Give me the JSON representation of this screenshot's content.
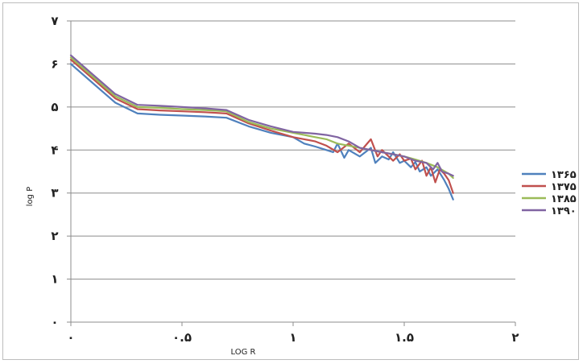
{
  "chart_data": {
    "type": "line",
    "title": "",
    "xlabel": "LOG R",
    "ylabel": "log P",
    "xlim": [
      0,
      2
    ],
    "ylim": [
      0,
      7
    ],
    "x_ticks": [
      {
        "value": 0,
        "label": "٠"
      },
      {
        "value": 0.5,
        "label": "٠.۵"
      },
      {
        "value": 1,
        "label": "۱"
      },
      {
        "value": 1.5,
        "label": "۱.۵"
      },
      {
        "value": 2,
        "label": "۲"
      }
    ],
    "y_ticks": [
      {
        "value": 0,
        "label": "٠"
      },
      {
        "value": 1,
        "label": "۱"
      },
      {
        "value": 2,
        "label": "۲"
      },
      {
        "value": 3,
        "label": "۳"
      },
      {
        "value": 4,
        "label": "۴"
      },
      {
        "value": 5,
        "label": "۵"
      },
      {
        "value": 6,
        "label": "۶"
      },
      {
        "value": 7,
        "label": "۷"
      }
    ],
    "grid": "horizontal",
    "legend_position": "right",
    "series": [
      {
        "name": "۱۳۶۵",
        "color": "#4f81bd",
        "points": [
          [
            0,
            6.0
          ],
          [
            0.1,
            5.55
          ],
          [
            0.2,
            5.1
          ],
          [
            0.3,
            4.85
          ],
          [
            0.4,
            4.82
          ],
          [
            0.5,
            4.8
          ],
          [
            0.6,
            4.78
          ],
          [
            0.7,
            4.75
          ],
          [
            0.8,
            4.55
          ],
          [
            0.9,
            4.4
          ],
          [
            1.0,
            4.3
          ],
          [
            1.05,
            4.15
          ],
          [
            1.1,
            4.08
          ],
          [
            1.15,
            4.0
          ],
          [
            1.18,
            3.95
          ],
          [
            1.2,
            4.15
          ],
          [
            1.23,
            3.82
          ],
          [
            1.25,
            4.0
          ],
          [
            1.3,
            3.85
          ],
          [
            1.35,
            4.05
          ],
          [
            1.37,
            3.7
          ],
          [
            1.4,
            3.85
          ],
          [
            1.43,
            3.78
          ],
          [
            1.45,
            3.95
          ],
          [
            1.48,
            3.7
          ],
          [
            1.5,
            3.75
          ],
          [
            1.53,
            3.6
          ],
          [
            1.55,
            3.72
          ],
          [
            1.57,
            3.5
          ],
          [
            1.6,
            3.6
          ],
          [
            1.62,
            3.4
          ],
          [
            1.65,
            3.55
          ],
          [
            1.68,
            3.3
          ],
          [
            1.7,
            3.1
          ],
          [
            1.72,
            2.85
          ]
        ]
      },
      {
        "name": "۱۳۷۵",
        "color": "#c0504d",
        "points": [
          [
            0,
            6.1
          ],
          [
            0.1,
            5.65
          ],
          [
            0.2,
            5.2
          ],
          [
            0.3,
            4.95
          ],
          [
            0.4,
            4.92
          ],
          [
            0.5,
            4.9
          ],
          [
            0.6,
            4.88
          ],
          [
            0.7,
            4.85
          ],
          [
            0.8,
            4.62
          ],
          [
            0.9,
            4.45
          ],
          [
            1.0,
            4.3
          ],
          [
            1.05,
            4.25
          ],
          [
            1.1,
            4.2
          ],
          [
            1.15,
            4.1
          ],
          [
            1.2,
            3.95
          ],
          [
            1.25,
            4.15
          ],
          [
            1.3,
            3.95
          ],
          [
            1.35,
            4.25
          ],
          [
            1.38,
            3.85
          ],
          [
            1.4,
            4.0
          ],
          [
            1.45,
            3.75
          ],
          [
            1.48,
            3.9
          ],
          [
            1.5,
            3.75
          ],
          [
            1.53,
            3.8
          ],
          [
            1.55,
            3.55
          ],
          [
            1.58,
            3.75
          ],
          [
            1.6,
            3.4
          ],
          [
            1.62,
            3.6
          ],
          [
            1.64,
            3.25
          ],
          [
            1.66,
            3.55
          ],
          [
            1.68,
            3.45
          ],
          [
            1.7,
            3.3
          ],
          [
            1.72,
            3.0
          ]
        ]
      },
      {
        "name": "۱۳۸۵",
        "color": "#9bbb59",
        "points": [
          [
            0,
            6.15
          ],
          [
            0.1,
            5.7
          ],
          [
            0.2,
            5.25
          ],
          [
            0.3,
            5.0
          ],
          [
            0.4,
            4.98
          ],
          [
            0.5,
            4.95
          ],
          [
            0.6,
            4.93
          ],
          [
            0.7,
            4.9
          ],
          [
            0.8,
            4.65
          ],
          [
            0.9,
            4.5
          ],
          [
            1.0,
            4.4
          ],
          [
            1.05,
            4.35
          ],
          [
            1.1,
            4.3
          ],
          [
            1.15,
            4.25
          ],
          [
            1.2,
            4.15
          ],
          [
            1.25,
            4.1
          ],
          [
            1.3,
            4.05
          ],
          [
            1.35,
            4.0
          ],
          [
            1.4,
            3.95
          ],
          [
            1.45,
            3.9
          ],
          [
            1.5,
            3.85
          ],
          [
            1.55,
            3.78
          ],
          [
            1.6,
            3.7
          ],
          [
            1.65,
            3.6
          ],
          [
            1.7,
            3.45
          ],
          [
            1.72,
            3.35
          ]
        ]
      },
      {
        "name": "۱۳۹۰",
        "color": "#8064a2",
        "points": [
          [
            0,
            6.2
          ],
          [
            0.1,
            5.75
          ],
          [
            0.2,
            5.3
          ],
          [
            0.3,
            5.05
          ],
          [
            0.4,
            5.03
          ],
          [
            0.5,
            5.0
          ],
          [
            0.6,
            4.97
          ],
          [
            0.7,
            4.93
          ],
          [
            0.8,
            4.7
          ],
          [
            0.9,
            4.55
          ],
          [
            1.0,
            4.42
          ],
          [
            1.05,
            4.4
          ],
          [
            1.1,
            4.38
          ],
          [
            1.15,
            4.35
          ],
          [
            1.2,
            4.3
          ],
          [
            1.25,
            4.2
          ],
          [
            1.3,
            4.05
          ],
          [
            1.35,
            4.0
          ],
          [
            1.4,
            3.95
          ],
          [
            1.45,
            3.9
          ],
          [
            1.5,
            3.85
          ],
          [
            1.55,
            3.75
          ],
          [
            1.6,
            3.7
          ],
          [
            1.63,
            3.55
          ],
          [
            1.65,
            3.7
          ],
          [
            1.67,
            3.5
          ],
          [
            1.7,
            3.45
          ],
          [
            1.72,
            3.4
          ]
        ]
      }
    ]
  }
}
